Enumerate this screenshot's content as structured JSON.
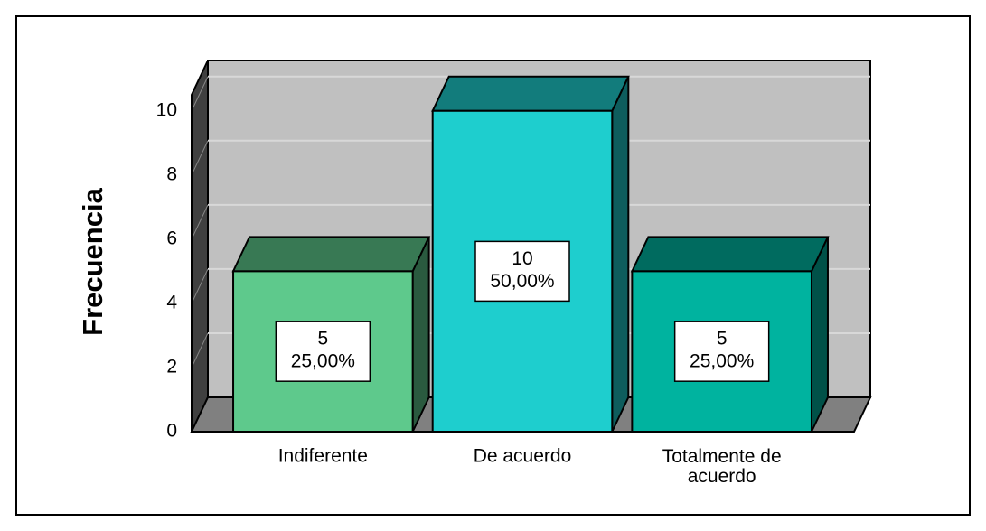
{
  "chart_data": {
    "type": "bar3d",
    "y_label": "Frecuencia",
    "categories": [
      "Indiferente",
      "De acuerdo",
      "Totalmente de acuerdo"
    ],
    "values": [
      5,
      10,
      5
    ],
    "percent": [
      25,
      50,
      25
    ],
    "percent_labels": [
      "25,00%",
      "50,00%",
      "25,00%"
    ],
    "colors": [
      "#5ec98c",
      "#1ecece",
      "#00b39f"
    ],
    "ylim": [
      0,
      10.5
    ],
    "yticks": [
      0,
      2,
      4,
      6,
      8,
      10
    ],
    "grid": true
  }
}
